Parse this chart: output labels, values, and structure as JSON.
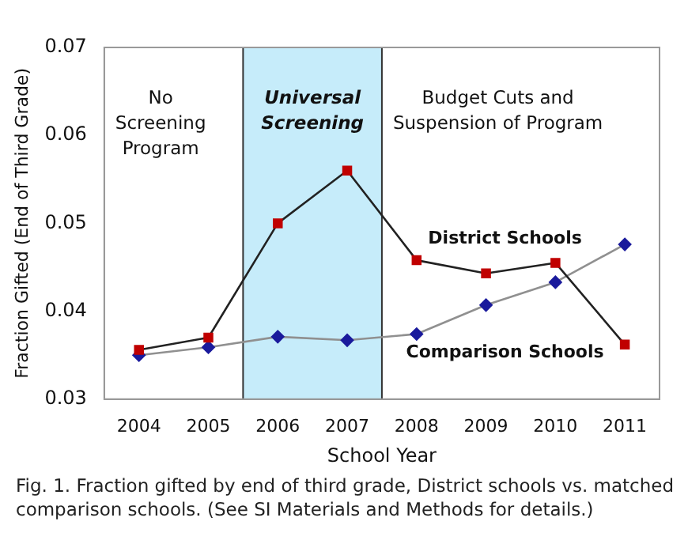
{
  "chart_data": {
    "type": "line",
    "xlabel": "School Year",
    "ylabel": "Fraction Gifted (End of Third Grade)",
    "x": [
      2004,
      2005,
      2006,
      2007,
      2008,
      2009,
      2010,
      2011
    ],
    "xlim": [
      2003.5,
      2011.5
    ],
    "xticks": [
      2004,
      2005,
      2006,
      2007,
      2008,
      2009,
      2010,
      2011
    ],
    "ylim": [
      0.03,
      0.07
    ],
    "yticks": [
      0.03,
      0.04,
      0.05,
      0.06,
      0.07
    ],
    "series": [
      {
        "name": "District Schools",
        "color": "#c00000",
        "marker": "square",
        "values": [
          0.0356,
          0.037,
          0.05,
          0.056,
          0.0458,
          0.0443,
          0.0455,
          0.0362
        ]
      },
      {
        "name": "Comparison Schools",
        "color": "#1a1a9c",
        "marker": "diamond",
        "values": [
          0.035,
          0.0359,
          0.0371,
          0.0367,
          0.0374,
          0.0407,
          0.0433,
          0.0476
        ]
      }
    ],
    "bands": [
      {
        "axis": "x",
        "from": 2005.5,
        "to": 2007.5,
        "label": "Universal Screening",
        "color": "#c6ecfa"
      }
    ],
    "ref_lines": [
      {
        "axis": "x",
        "value": 2005.5,
        "color": "#333333"
      },
      {
        "axis": "x",
        "value": 2007.5,
        "color": "#333333"
      }
    ],
    "annotations": [
      "No Screening Program",
      "Budget Cuts and Suspension of Program",
      "Fig. 1.  Fraction gifted by end of third grade, District schools vs. matched comparison schools. (See SI Materials and Methods for details.)"
    ],
    "grid": false,
    "legend": false
  }
}
